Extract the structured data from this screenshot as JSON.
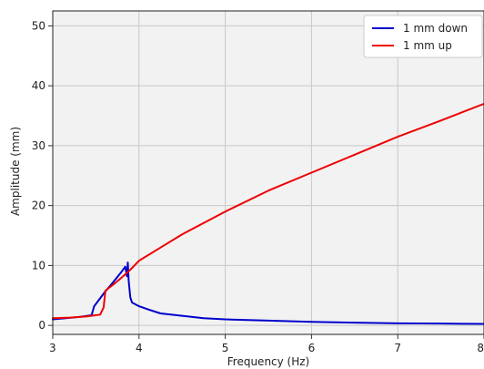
{
  "chart_data": {
    "type": "line",
    "xlabel": "Frequency (Hz)",
    "ylabel": "Amplitude (mm)",
    "xlim": [
      3,
      8
    ],
    "ylim": [
      -1.5,
      52.5
    ],
    "xticks": [
      3,
      4,
      5,
      6,
      7,
      8
    ],
    "yticks": [
      0,
      10,
      20,
      30,
      40,
      50
    ],
    "grid": true,
    "legend_position": "top-right",
    "series": [
      {
        "name": "1 mm down",
        "color": "#0000cc",
        "x": [
          3.0,
          3.15,
          3.3,
          3.45,
          3.48,
          3.6,
          3.7,
          3.8,
          3.84,
          3.86,
          3.87,
          3.88,
          3.89,
          3.9,
          3.92,
          4.0,
          4.1,
          4.25,
          4.5,
          4.75,
          5.0,
          5.5,
          6.0,
          6.5,
          7.0,
          7.5,
          8.0
        ],
        "y": [
          1.0,
          1.2,
          1.4,
          1.7,
          3.2,
          5.5,
          7.2,
          9.0,
          9.8,
          8.2,
          10.5,
          7.5,
          6.0,
          4.6,
          3.8,
          3.2,
          2.7,
          2.0,
          1.6,
          1.2,
          1.0,
          0.8,
          0.6,
          0.45,
          0.35,
          0.3,
          0.25
        ]
      },
      {
        "name": "1 mm up",
        "color": "#ee0000",
        "x": [
          3.0,
          3.2,
          3.4,
          3.55,
          3.59,
          3.61,
          3.7,
          3.8,
          3.9,
          4.0,
          4.25,
          4.5,
          5.0,
          5.5,
          6.0,
          6.5,
          7.0,
          7.5,
          8.0
        ],
        "y": [
          1.2,
          1.3,
          1.5,
          1.8,
          3.0,
          5.8,
          6.8,
          8.0,
          9.3,
          10.8,
          13.0,
          15.2,
          19.0,
          22.5,
          25.5,
          28.5,
          31.5,
          34.2,
          37.0
        ]
      }
    ]
  }
}
